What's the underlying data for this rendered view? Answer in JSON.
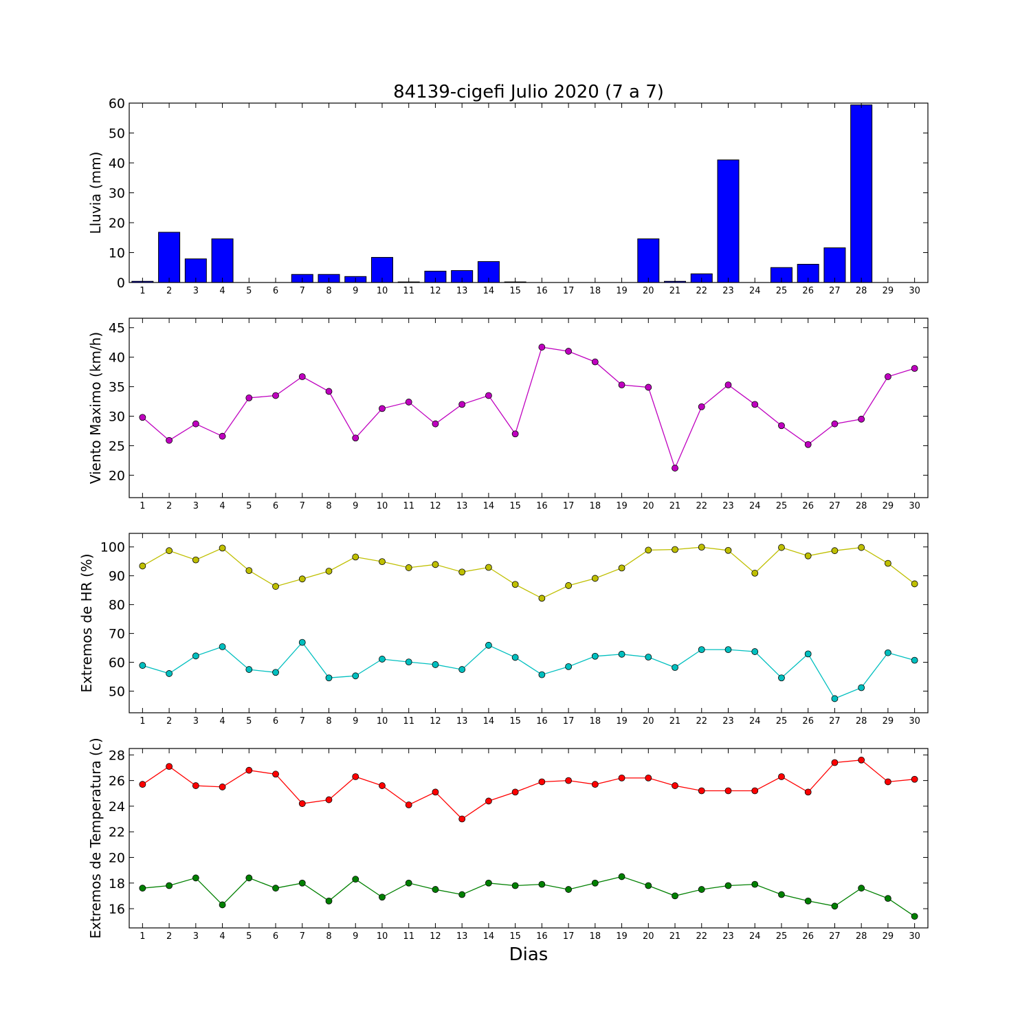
{
  "chart_data": {
    "title": "84139-cigefi Julio 2020  (7 a 7)",
    "xlabel": "Dias",
    "days": [
      1,
      2,
      3,
      4,
      5,
      6,
      7,
      8,
      9,
      10,
      11,
      12,
      13,
      14,
      15,
      16,
      17,
      18,
      19,
      20,
      21,
      22,
      23,
      24,
      25,
      26,
      27,
      28,
      29,
      30
    ],
    "panels": [
      {
        "id": "lluvia",
        "type": "bar",
        "ylabel": "Lluvia (mm)",
        "ylim": [
          0,
          60
        ],
        "yticks": [
          0,
          10,
          20,
          30,
          40,
          50,
          60
        ],
        "series": [
          {
            "color": "#0000ff",
            "values": [
              0.4,
              16.8,
              7.9,
              14.6,
              0,
              0,
              2.7,
              2.7,
              2.0,
              8.4,
              0.2,
              3.8,
              4.0,
              7.0,
              0.2,
              0,
              0,
              0,
              0,
              14.6,
              0.4,
              2.9,
              41.0,
              0,
              5.0,
              6.1,
              11.6,
              59.4,
              0,
              0
            ]
          }
        ]
      },
      {
        "id": "viento",
        "type": "line",
        "ylabel": "Viento Maximo (km/h)",
        "ylim": [
          16.2,
          46.6
        ],
        "yticks": [
          20,
          25,
          30,
          35,
          40,
          45
        ],
        "series": [
          {
            "color": "#bf00bf",
            "values": [
              29.8,
              25.9,
              28.7,
              26.6,
              33.1,
              33.5,
              36.7,
              34.2,
              26.3,
              31.3,
              32.4,
              28.7,
              32.0,
              33.5,
              27.0,
              41.7,
              41.0,
              39.2,
              35.3,
              34.9,
              21.2,
              31.6,
              35.3,
              32.0,
              28.4,
              25.2,
              28.7,
              29.5,
              36.7,
              38.1
            ]
          }
        ]
      },
      {
        "id": "hr",
        "type": "line",
        "ylabel": "Extremos de HR (%)",
        "ylim": [
          42.5,
          104.7
        ],
        "yticks": [
          50,
          60,
          70,
          80,
          90,
          100
        ],
        "series": [
          {
            "color": "#bfbf00",
            "values": [
              93.4,
              98.7,
              95.5,
              99.6,
              91.8,
              86.3,
              88.9,
              91.6,
              96.5,
              94.9,
              92.8,
              93.9,
              91.3,
              92.9,
              87.0,
              82.2,
              86.6,
              89.1,
              92.7,
              98.9,
              99.1,
              99.9,
              98.8,
              90.9,
              99.8,
              96.9,
              98.7,
              99.8,
              94.3,
              87.2
            ]
          },
          {
            "color": "#00bfbf",
            "values": [
              58.9,
              56.1,
              62.2,
              65.4,
              57.5,
              56.5,
              66.9,
              54.6,
              55.3,
              61.1,
              60.1,
              59.2,
              57.5,
              65.9,
              61.7,
              55.7,
              58.5,
              62.1,
              62.8,
              61.8,
              58.2,
              64.4,
              64.4,
              63.7,
              54.6,
              62.9,
              47.4,
              51.2,
              63.3,
              60.7
            ]
          }
        ]
      },
      {
        "id": "temperatura",
        "type": "line",
        "ylabel": "Extremos de Temperatura (c)",
        "ylim": [
          14.5,
          28.5
        ],
        "yticks": [
          16,
          18,
          20,
          22,
          24,
          26,
          28
        ],
        "series": [
          {
            "color": "#ff0000",
            "values": [
              25.7,
              27.1,
              25.6,
              25.5,
              26.8,
              26.5,
              24.2,
              24.5,
              26.3,
              25.6,
              24.1,
              25.1,
              23.0,
              24.4,
              25.1,
              25.9,
              26.0,
              25.7,
              26.2,
              26.2,
              25.6,
              25.2,
              25.2,
              25.2,
              26.3,
              25.1,
              27.4,
              27.6,
              25.9,
              26.1
            ]
          },
          {
            "color": "#008000",
            "values": [
              17.6,
              17.8,
              18.4,
              16.3,
              18.4,
              17.6,
              18.0,
              16.6,
              18.3,
              16.9,
              18.0,
              17.5,
              17.1,
              18.0,
              17.8,
              17.9,
              17.5,
              18.0,
              18.5,
              17.8,
              17.0,
              17.5,
              17.8,
              17.9,
              17.1,
              16.6,
              16.2,
              17.6,
              16.8,
              15.4
            ]
          }
        ]
      }
    ]
  }
}
